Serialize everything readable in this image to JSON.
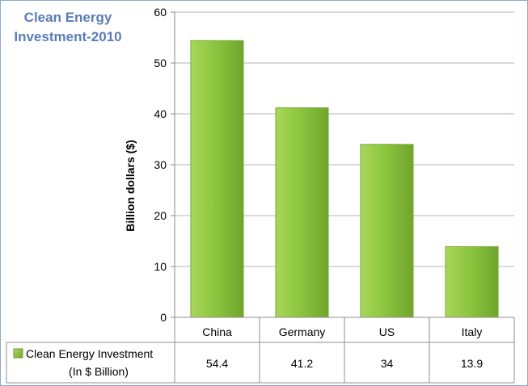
{
  "chart_data": {
    "type": "bar",
    "title_lines": [
      "Clean Energy",
      "Investment-2010"
    ],
    "ylabel": "Billion dollars ($)",
    "xlabel": "",
    "ylim": [
      0,
      60
    ],
    "yticks": [
      0,
      10,
      20,
      30,
      40,
      50,
      60
    ],
    "grid": true,
    "categories": [
      "China",
      "Germany",
      "US",
      "Italy"
    ],
    "series": [
      {
        "name_lines": [
          "Clean Energy Investment",
          "(In $ Billion)"
        ],
        "values": [
          54.4,
          41.2,
          34,
          13.9
        ],
        "value_labels": [
          "54.4",
          "41.2",
          "34",
          "13.9"
        ],
        "color": "#8cc63f"
      }
    ],
    "data_table": true
  }
}
